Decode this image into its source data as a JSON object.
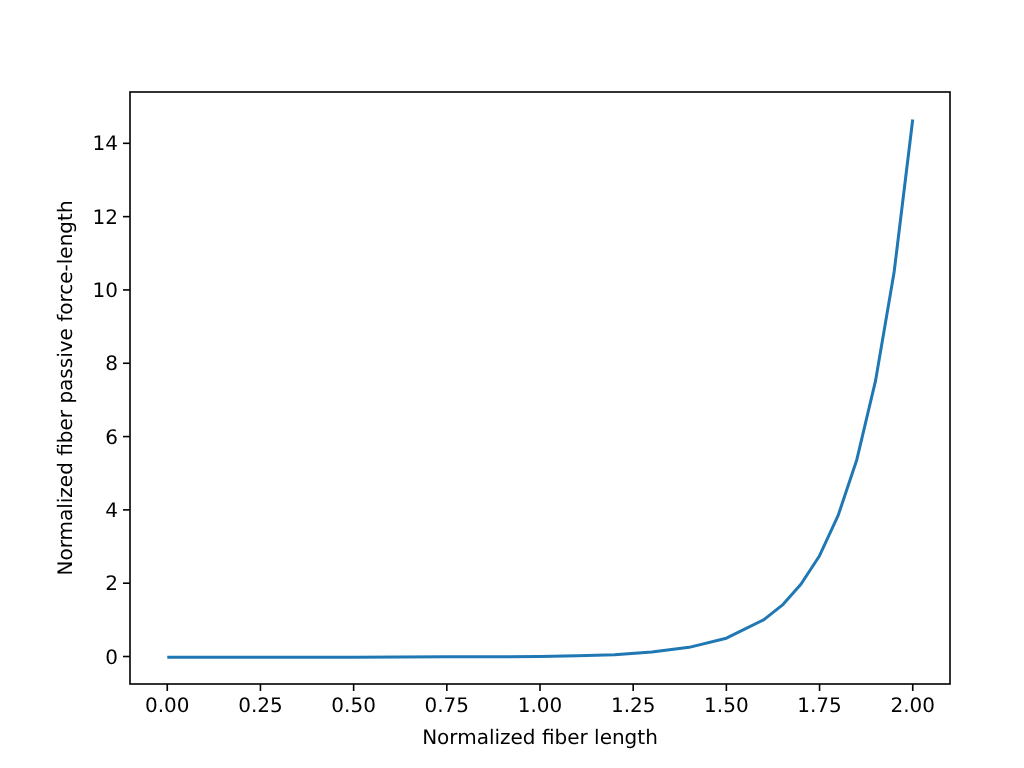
{
  "chart_data": {
    "type": "line",
    "xlabel": "Normalized fiber length",
    "ylabel": "Normalized fiber passive force-length",
    "x": [
      0,
      0.25,
      0.5,
      0.75,
      1.0,
      1.1,
      1.2,
      1.3,
      1.4,
      1.5,
      1.6,
      1.65,
      1.7,
      1.75,
      1.8,
      1.85,
      1.9,
      1.95,
      2.0
    ],
    "series": [
      {
        "color": "#1f77b4",
        "values": [
          -0.02,
          -0.02,
          -0.02,
          -0.01,
          0,
          0.02,
          0.05,
          0.12,
          0.25,
          0.5,
          1.0,
          1.4,
          1.97,
          2.75,
          3.85,
          5.37,
          7.51,
          10.48,
          14.65
        ]
      }
    ],
    "xlim": [
      -0.1,
      2.1
    ],
    "ylim": [
      -0.75,
      15.4
    ],
    "xticks": [
      {
        "value": 0,
        "label": "0.00"
      },
      {
        "value": 0.25,
        "label": "0.25"
      },
      {
        "value": 0.5,
        "label": "0.50"
      },
      {
        "value": 0.75,
        "label": "0.75"
      },
      {
        "value": 1,
        "label": "1.00"
      },
      {
        "value": 1.25,
        "label": "1.25"
      },
      {
        "value": 1.5,
        "label": "1.50"
      },
      {
        "value": 1.75,
        "label": "1.75"
      },
      {
        "value": 2,
        "label": "2.00"
      }
    ],
    "yticks": [
      0,
      2,
      4,
      6,
      8,
      10,
      12,
      14
    ],
    "grid": false,
    "line_style": "solid",
    "marker": "none"
  }
}
